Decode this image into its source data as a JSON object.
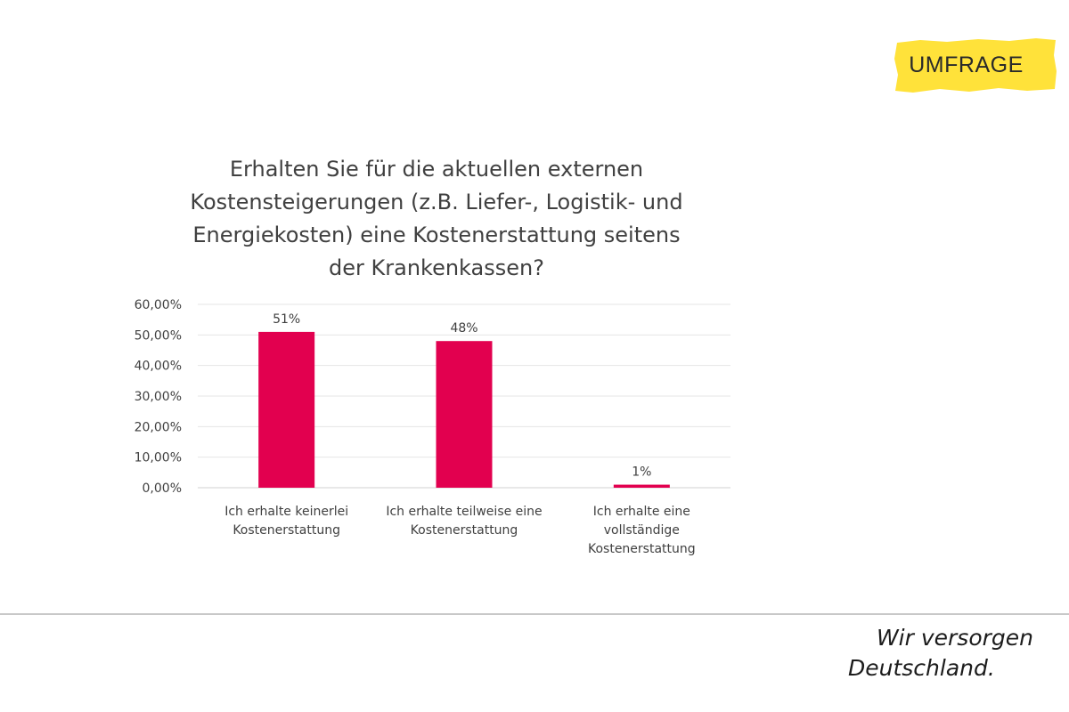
{
  "badge": {
    "label": "UMFRAGE",
    "color": "#ffe23a"
  },
  "chart_data": {
    "type": "bar",
    "title_lines": [
      "Erhalten Sie für die aktuellen externen",
      "Kostensteigerungen (z.B. Liefer-, Logistik- und",
      "Energiekosten) eine Kostenerstattung seitens",
      "der Krankenkassen?"
    ],
    "categories": [
      [
        "Ich erhalte keinerlei",
        "Kostenerstattung"
      ],
      [
        "Ich erhalte teilweise eine",
        "Kostenerstattung"
      ],
      [
        "Ich erhalte eine",
        "vollständige",
        "Kostenerstattung"
      ]
    ],
    "values": [
      51,
      48,
      1
    ],
    "data_labels": [
      "51%",
      "48%",
      "1%"
    ],
    "ylim": [
      0,
      60
    ],
    "yticks": [
      "0,00%",
      "10,00%",
      "20,00%",
      "30,00%",
      "40,00%",
      "50,00%",
      "60,00%"
    ],
    "bar_color": "#e2004f",
    "grid": true,
    "xlabel": "",
    "ylabel": ""
  },
  "footer": {
    "slogan_line1": "Wir versorgen",
    "slogan_line2": "Deutschland."
  }
}
